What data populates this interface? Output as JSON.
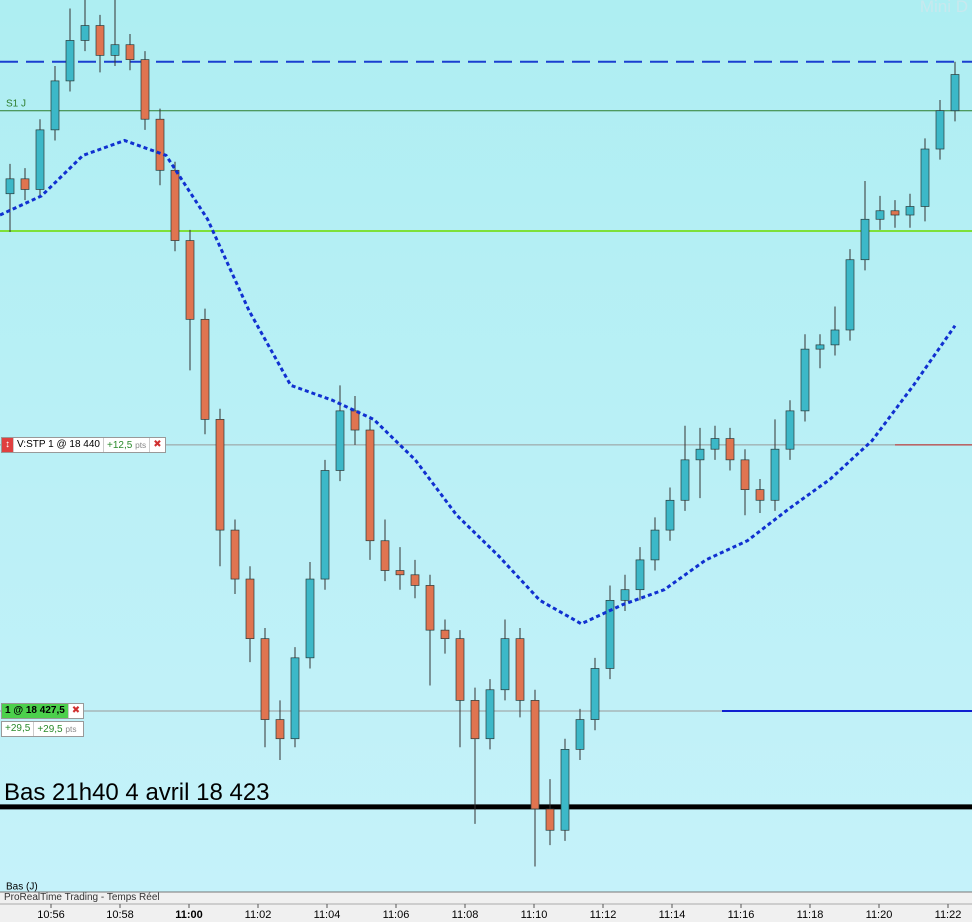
{
  "chart_data": {
    "type": "candlestick",
    "watermark": "Mini D",
    "status": "ProRealTime Trading - Temps Réel",
    "ylim": [
      18419.0,
      18460.9
    ],
    "x_labels": [
      "10:56",
      "10:58",
      "11:00",
      "11:02",
      "11:04",
      "11:06",
      "11:08",
      "11:10",
      "11:12",
      "11:14",
      "11:16",
      "11:18",
      "11:20",
      "11:22"
    ],
    "up_color": "#3cb8c8",
    "down_color": "#e07450",
    "candles": {
      "open": [
        18451.8,
        18452.5,
        18452,
        18454.8,
        18457.1,
        18459,
        18459.7,
        18458.3,
        18458.8,
        18458.1,
        18455.3,
        18452.9,
        18449.6,
        18445.9,
        18441.2,
        18436,
        18433.7,
        18430.9,
        18427.1,
        18426.2,
        18430,
        18433.7,
        18438.8,
        18441.6,
        18440.7,
        18435.5,
        18434.1,
        18433.9,
        18433.4,
        18431.3,
        18430.9,
        18428,
        18426.2,
        18428.5,
        18430.9,
        18428,
        18422.9,
        18421.9,
        18425.7,
        18427.1,
        18429.5,
        18432.7,
        18433.2,
        18434.6,
        18436,
        18437.4,
        18439.3,
        18439.8,
        18440.3,
        18439.3,
        18437.9,
        18437.4,
        18439.8,
        18441.6,
        18444.5,
        18444.7,
        18445.4,
        18448.7,
        18450.6,
        18451,
        18450.8,
        18451.2,
        18453.9,
        18455.7
      ],
      "high": [
        18453.2,
        18453,
        18455.3,
        18457.8,
        18460.5,
        18460.9,
        18460.2,
        18460.9,
        18459.3,
        18458.5,
        18455.8,
        18453.3,
        18450.1,
        18446.4,
        18441.7,
        18436.5,
        18434.3,
        18431.4,
        18428,
        18430.5,
        18434.5,
        18439.3,
        18442.8,
        18442.3,
        18441.2,
        18436.5,
        18435.2,
        18434.6,
        18433.9,
        18431.8,
        18431.3,
        18428.6,
        18429,
        18431.8,
        18431.4,
        18428.5,
        18424.3,
        18426.2,
        18427.6,
        18430,
        18433.4,
        18433.9,
        18435.2,
        18436.6,
        18438,
        18440.9,
        18440.8,
        18440.9,
        18440.8,
        18439.8,
        18438.4,
        18441.2,
        18442.1,
        18445.2,
        18445.2,
        18446.5,
        18449.2,
        18452.4,
        18451.7,
        18451.5,
        18451.8,
        18454.4,
        18456.2,
        18458
      ],
      "low": [
        18450,
        18451.5,
        18451.6,
        18454.3,
        18456.6,
        18458.5,
        18457.5,
        18457.8,
        18457.6,
        18454.8,
        18452.2,
        18449.1,
        18443.5,
        18440.5,
        18434.3,
        18433,
        18429.8,
        18425.8,
        18425.2,
        18425.8,
        18429.5,
        18433.2,
        18438.3,
        18440,
        18434.6,
        18433.6,
        18433.2,
        18432.8,
        18428.7,
        18430.2,
        18425.8,
        18422.2,
        18425.7,
        18428,
        18427.2,
        18420.2,
        18421.2,
        18421.4,
        18425.2,
        18426.6,
        18429,
        18432.2,
        18432.7,
        18434.1,
        18435.5,
        18436.9,
        18437.5,
        18439.3,
        18438.8,
        18436.7,
        18436.8,
        18436.9,
        18439.3,
        18441.1,
        18443.6,
        18444.2,
        18444.9,
        18448.2,
        18450.1,
        18450.2,
        18450.2,
        18450.5,
        18453.4,
        18455.2
      ],
      "close": [
        18452.5,
        18452,
        18454.8,
        18457.1,
        18459,
        18459.7,
        18458.3,
        18458.8,
        18458.1,
        18455.3,
        18452.9,
        18449.6,
        18445.9,
        18441.2,
        18436,
        18433.7,
        18430.9,
        18427.1,
        18426.2,
        18430,
        18433.7,
        18438.8,
        18441.6,
        18440.7,
        18435.5,
        18434.1,
        18433.9,
        18433.4,
        18431.3,
        18430.9,
        18428,
        18426.2,
        18428.5,
        18430.9,
        18428,
        18422.9,
        18421.9,
        18425.7,
        18427.1,
        18429.5,
        18432.7,
        18433.2,
        18434.6,
        18436,
        18437.4,
        18439.3,
        18439.8,
        18440.3,
        18439.3,
        18437.9,
        18437.4,
        18439.8,
        18441.6,
        18444.5,
        18444.7,
        18445.4,
        18448.7,
        18450.6,
        18451,
        18450.8,
        18451.2,
        18453.9,
        18455.7,
        18457.4
      ]
    },
    "ma": {
      "color": "#1030d0",
      "values": [
        18450.8,
        18451.7,
        18453.6,
        18454.3,
        18453.6,
        18450.6,
        18446.3,
        18442.8,
        18442.1,
        18441.2,
        18439.3,
        18436.7,
        18434.8,
        18432.7,
        18431.6,
        18432.5,
        18433.2,
        18434.6,
        18435.5,
        18437,
        18438.4,
        18440.2,
        18442.8,
        18445.6
      ]
    },
    "resistance": {
      "value": 18458,
      "color": "#1a3fd0"
    },
    "s1": {
      "value": 18455.7,
      "color": "#2e7d2e",
      "label": "S1 J"
    },
    "support": {
      "value": 18450.05,
      "color": "#7ee03a"
    },
    "low_line": {
      "value": 18423,
      "color": "#000000",
      "label": "Bas 21h40 4 avril 18 423"
    },
    "day_low": {
      "value": 18419.3,
      "label": "Bas (J)"
    },
    "order": {
      "label": "V:STP 1 @ 18 440",
      "price": 18440,
      "pnl": "+12,5",
      "unit": "pts"
    },
    "position": {
      "label": "1 @ 18 427,5",
      "price": 18427.5,
      "pnl1": "+29,5",
      "pnl2": "+29,5",
      "unit": "pts"
    }
  }
}
